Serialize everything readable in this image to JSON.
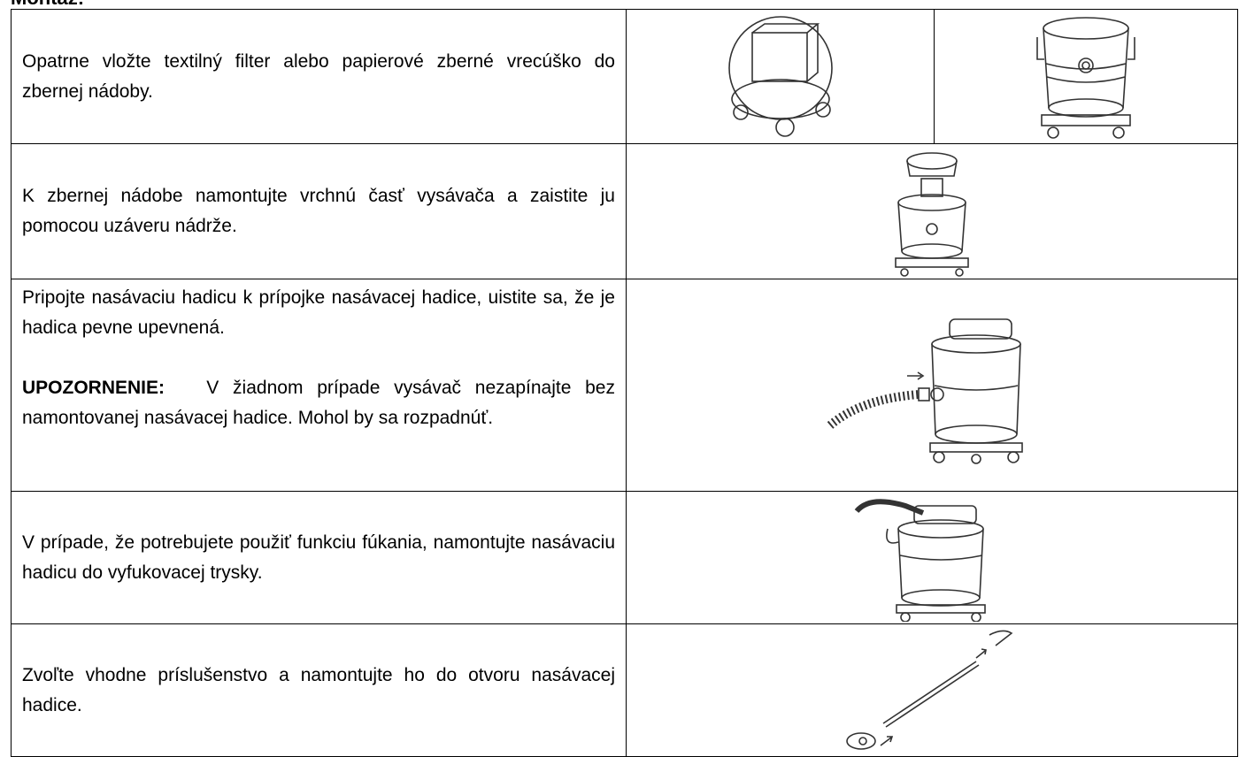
{
  "header": {
    "title": "Montáž:"
  },
  "table": {
    "rows": [
      {
        "text": "Opatrne vložte textilný filter alebo papierové zberné vrecúško do zbernej nádoby."
      },
      {
        "text": "K zbernej nádobe namontujte vrchnú časť vysávača a zaistite ju pomocou uzáveru nádrže."
      },
      {
        "text": "Pripojte nasávaciu hadicu k prípojke nasávacej hadice, uistite sa, že je hadica pevne upevnená.",
        "warning_label": "UPOZORNENIE:",
        "warning_text": "V žiadnom prípade vysávač nezapínajte bez namontovanej nasávacej hadice. Mohol by sa rozpadnúť."
      },
      {
        "text": "V prípade, že potrebujete použiť funkciu fúkania, namontujte nasávaciu hadicu do vyfukovacej trysky."
      },
      {
        "text": "Zvoľte vhodne príslušenstvo a namontujte ho do otvoru nasávacej hadice."
      }
    ]
  }
}
